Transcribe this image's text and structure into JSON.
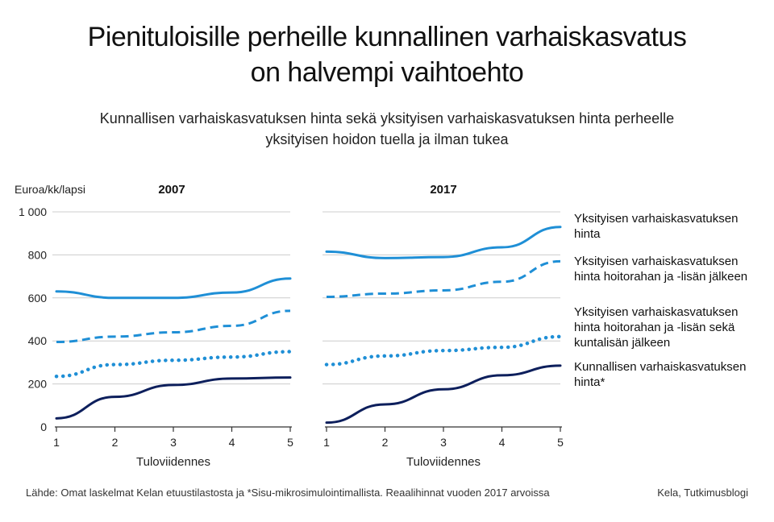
{
  "title_lines": [
    "Pienituloisille perheille kunnallinen varhaiskasvatus",
    "on halvempi vaihtoehto"
  ],
  "subtitle_lines": [
    "Kunnallisen varhaiskasvatuksen hinta sekä yksityisen varhaiskasvatuksen hinta perheelle",
    "yksityisen hoidon tuella ja ilman tukea"
  ],
  "footer": {
    "source": "Lähde: Omat laskelmat Kelan etuustilastosta ja *Sisu-mikrosimulointimallista. Reaalihinnat vuoden 2017 arvoissa",
    "credit": "Kela, Tutkimusblogi"
  },
  "legend": [
    {
      "lines": [
        "Yksityisen varhaiskasvatuksen",
        "hinta"
      ]
    },
    {
      "lines": [
        "Yksityisen varhaiskasvatuksen",
        "hinta hoitorahan ja -lisän jälkeen"
      ]
    },
    {
      "lines": [
        "Yksityisen varhaiskasvatuksen",
        "hinta hoitorahan ja -lisän sekä",
        "kuntalisän jälkeen"
      ]
    },
    {
      "lines": [
        "Kunnallisen varhaiskasvatuksen",
        "hinta*"
      ]
    }
  ],
  "colors": {
    "light_blue": "#1f8fd6",
    "dark_navy": "#0d1f5c",
    "grid": "#cccccc",
    "axis": "#333333"
  },
  "chart_data": [
    {
      "type": "line",
      "title": "2007",
      "ylabel": "Euroa/kk/lapsi",
      "xlabel": "Tuloviidennes",
      "x": [
        1,
        2,
        3,
        4,
        5
      ],
      "ylim": [
        0,
        1000
      ],
      "yticks": [
        0,
        200,
        400,
        600,
        800,
        1000
      ],
      "ytick_labels": [
        "0",
        "200",
        "400",
        "600",
        "800",
        "1 000"
      ],
      "series": [
        {
          "style": "solid",
          "color": "light_blue",
          "values": [
            630,
            600,
            600,
            625,
            690
          ]
        },
        {
          "style": "dashed",
          "color": "light_blue",
          "values": [
            395,
            420,
            440,
            470,
            540
          ]
        },
        {
          "style": "dotted",
          "color": "light_blue",
          "values": [
            235,
            290,
            310,
            325,
            350
          ]
        },
        {
          "style": "solid",
          "color": "dark_navy",
          "values": [
            40,
            140,
            195,
            225,
            230
          ]
        }
      ]
    },
    {
      "type": "line",
      "title": "2017",
      "ylabel": "",
      "xlabel": "Tuloviidennes",
      "x": [
        1,
        2,
        3,
        4,
        5
      ],
      "ylim": [
        0,
        1000
      ],
      "yticks": [
        0,
        200,
        400,
        600,
        800,
        1000
      ],
      "series": [
        {
          "style": "solid",
          "color": "light_blue",
          "values": [
            815,
            785,
            790,
            835,
            930
          ]
        },
        {
          "style": "dashed",
          "color": "light_blue",
          "values": [
            605,
            620,
            635,
            675,
            770
          ]
        },
        {
          "style": "dotted",
          "color": "light_blue",
          "values": [
            290,
            330,
            355,
            370,
            420
          ]
        },
        {
          "style": "solid",
          "color": "dark_navy",
          "values": [
            20,
            105,
            175,
            240,
            285
          ]
        }
      ]
    }
  ]
}
